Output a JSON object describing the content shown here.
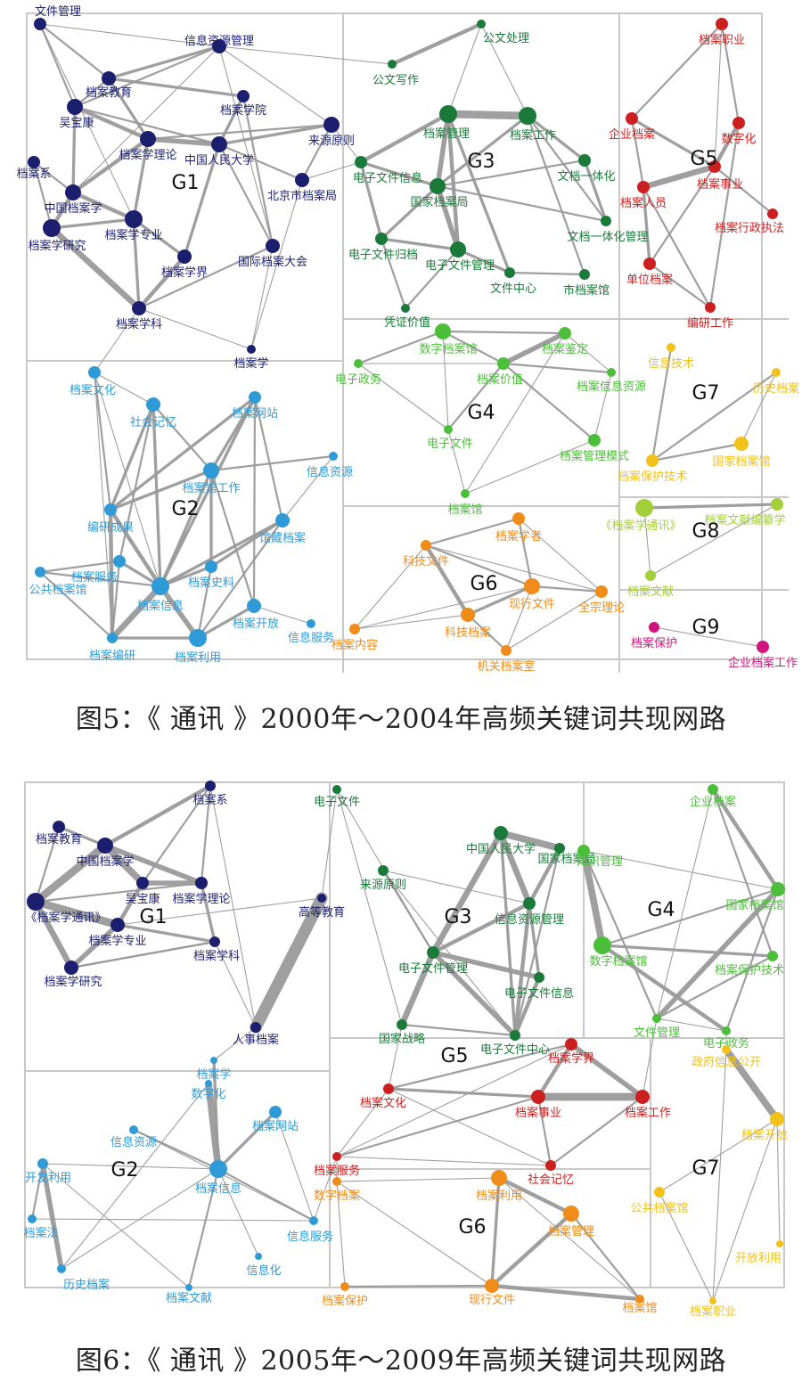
{
  "colors": {
    "G1": "#1c1f6e",
    "G2": "#2f9bd6",
    "G3": "#1a7a3a",
    "G4": "#4cbf3a",
    "G5": "#cc1f1f",
    "G6": "#ef8c1a",
    "G7": "#f2c21a",
    "G8": "#a4cf3a",
    "G9": "#d0157c",
    "edge": "#9a9a9a",
    "border": "#c8c8c8"
  },
  "figures": [
    {
      "caption": "图5：《 通讯 》2000年～2004年高频关键词共现网路",
      "groups": [
        {
          "id": "G1",
          "label": "G1",
          "nodes": [
            {
              "id": "a1",
              "text": "文件管理"
            },
            {
              "id": "a2",
              "text": "信息资源管理"
            },
            {
              "id": "a3",
              "text": "档案教育"
            },
            {
              "id": "a4",
              "text": "档案学院"
            },
            {
              "id": "a5",
              "text": "吴宝康"
            },
            {
              "id": "a6",
              "text": "来源原则"
            },
            {
              "id": "a7",
              "text": "档案学理论"
            },
            {
              "id": "a8",
              "text": "中国人民大学"
            },
            {
              "id": "a9",
              "text": "档案系"
            },
            {
              "id": "a10",
              "text": "北京市档案局"
            },
            {
              "id": "a11",
              "text": "中国档案学"
            },
            {
              "id": "a12",
              "text": "档案学专业"
            },
            {
              "id": "a13",
              "text": "档案学研究"
            },
            {
              "id": "a14",
              "text": "档案学界"
            },
            {
              "id": "a15",
              "text": "国际档案大会"
            },
            {
              "id": "a16",
              "text": "档案学科"
            },
            {
              "id": "a17",
              "text": "档案学"
            }
          ]
        },
        {
          "id": "G3",
          "label": "G3",
          "nodes": [
            {
              "id": "c1",
              "text": "公文处理"
            },
            {
              "id": "c2",
              "text": "公文写作"
            },
            {
              "id": "c3",
              "text": "档案管理"
            },
            {
              "id": "c4",
              "text": "档案工作"
            },
            {
              "id": "c5",
              "text": "电子文件信息"
            },
            {
              "id": "c6",
              "text": "文档一体化"
            },
            {
              "id": "c7",
              "text": "国家档案局"
            },
            {
              "id": "c8",
              "text": "文档一体化管理"
            },
            {
              "id": "c9",
              "text": "电子文件归档"
            },
            {
              "id": "c10",
              "text": "电子文件管理"
            },
            {
              "id": "c11",
              "text": "文件中心"
            },
            {
              "id": "c12",
              "text": "市档案馆"
            },
            {
              "id": "c13",
              "text": "凭证价值"
            }
          ]
        },
        {
          "id": "G5",
          "label": "G5",
          "nodes": [
            {
              "id": "e1",
              "text": "档案职业"
            },
            {
              "id": "e2",
              "text": "企业档案"
            },
            {
              "id": "e3",
              "text": "数字化"
            },
            {
              "id": "e4",
              "text": "档案事业"
            },
            {
              "id": "e5",
              "text": "档案人员"
            },
            {
              "id": "e6",
              "text": "档案行政执法"
            },
            {
              "id": "e7",
              "text": "单位档案"
            },
            {
              "id": "e8",
              "text": "编研工作"
            }
          ]
        },
        {
          "id": "G2",
          "label": "G2",
          "nodes": [
            {
              "id": "b1",
              "text": "档案文化"
            },
            {
              "id": "b2",
              "text": "社会记忆"
            },
            {
              "id": "b3",
              "text": "档案网站"
            },
            {
              "id": "b4",
              "text": "信息资源"
            },
            {
              "id": "b5",
              "text": "档案馆工作"
            },
            {
              "id": "b6",
              "text": "编研成果"
            },
            {
              "id": "b7",
              "text": "馆藏档案"
            },
            {
              "id": "b8",
              "text": "档案服务"
            },
            {
              "id": "b9",
              "text": "档案史料"
            },
            {
              "id": "b10",
              "text": "公共档案馆"
            },
            {
              "id": "b11",
              "text": "档案信息"
            },
            {
              "id": "b12",
              "text": "档案开放"
            },
            {
              "id": "b13",
              "text": "信息服务"
            },
            {
              "id": "b14",
              "text": "档案编研"
            },
            {
              "id": "b15",
              "text": "档案利用"
            }
          ]
        },
        {
          "id": "G4",
          "label": "G4",
          "nodes": [
            {
              "id": "d1",
              "text": "数字档案馆"
            },
            {
              "id": "d2",
              "text": "档案鉴定"
            },
            {
              "id": "d3",
              "text": "电子政务"
            },
            {
              "id": "d4",
              "text": "档案价值"
            },
            {
              "id": "d5",
              "text": "档案信息资源"
            },
            {
              "id": "d6",
              "text": "电子文件"
            },
            {
              "id": "d7",
              "text": "档案管理模式"
            },
            {
              "id": "d8",
              "text": "档案馆"
            }
          ]
        },
        {
          "id": "G7",
          "label": "G7",
          "nodes": [
            {
              "id": "g1",
              "text": "信息技术"
            },
            {
              "id": "g2",
              "text": "历史档案"
            },
            {
              "id": "g3",
              "text": "国家档案馆"
            },
            {
              "id": "g4",
              "text": "档案保护技术"
            }
          ]
        },
        {
          "id": "G6",
          "label": "G6",
          "nodes": [
            {
              "id": "f1",
              "text": "档案学者"
            },
            {
              "id": "f2",
              "text": "科技文件"
            },
            {
              "id": "f3",
              "text": "现行文件"
            },
            {
              "id": "f4",
              "text": "全宗理论"
            },
            {
              "id": "f5",
              "text": "档案内容"
            },
            {
              "id": "f6",
              "text": "科技档案"
            },
            {
              "id": "f7",
              "text": "机关档案室"
            }
          ]
        },
        {
          "id": "G8",
          "label": "G8",
          "nodes": [
            {
              "id": "h1",
              "text": "《档案学通讯》"
            },
            {
              "id": "h2",
              "text": "档案文献编纂学"
            },
            {
              "id": "h3",
              "text": "档案文献"
            }
          ]
        },
        {
          "id": "G9",
          "label": "G9",
          "nodes": [
            {
              "id": "i1",
              "text": "档案保护"
            },
            {
              "id": "i2",
              "text": "企业档案工作"
            }
          ]
        }
      ]
    },
    {
      "caption": "图6：《 通讯 》2005年～2009年高频关键词共现网路",
      "groups": [
        {
          "id": "G1",
          "label": "G1",
          "nodes": [
            {
              "id": "p1",
              "text": "档案系"
            },
            {
              "id": "p2",
              "text": "档案教育"
            },
            {
              "id": "p3",
              "text": "中国档案学"
            },
            {
              "id": "p4",
              "text": "吴宝康"
            },
            {
              "id": "p5",
              "text": "档案学理论"
            },
            {
              "id": "p6",
              "text": "《档案学通讯》"
            },
            {
              "id": "p7",
              "text": "档案学专业"
            },
            {
              "id": "p8",
              "text": "档案学科"
            },
            {
              "id": "p9",
              "text": "档案学研究"
            },
            {
              "id": "p10",
              "text": "高等教育"
            },
            {
              "id": "p11",
              "text": "人事档案"
            }
          ]
        },
        {
          "id": "G3",
          "label": "G3",
          "nodes": [
            {
              "id": "r1",
              "text": "电子文件"
            },
            {
              "id": "r2",
              "text": "中国人民大学"
            },
            {
              "id": "r3",
              "text": "国家档案局"
            },
            {
              "id": "r4",
              "text": "来源原则"
            },
            {
              "id": "r5",
              "text": "信息资源管理"
            },
            {
              "id": "r6",
              "text": "电子文件管理"
            },
            {
              "id": "r7",
              "text": "电子文件信息"
            },
            {
              "id": "r8",
              "text": "国家战略"
            },
            {
              "id": "r9",
              "text": "电子文件中心"
            }
          ]
        },
        {
          "id": "G4",
          "label": "G4",
          "nodes": [
            {
              "id": "s1",
              "text": "企业档案"
            },
            {
              "id": "s2",
              "text": "知识管理"
            },
            {
              "id": "s3",
              "text": "国家档案馆"
            },
            {
              "id": "s4",
              "text": "数字档案馆"
            },
            {
              "id": "s5",
              "text": "档案保护技术"
            },
            {
              "id": "s6",
              "text": "文件管理"
            },
            {
              "id": "s7",
              "text": "电子政务"
            }
          ]
        },
        {
          "id": "G2",
          "label": "G2",
          "nodes": [
            {
              "id": "q1",
              "text": "档案学"
            },
            {
              "id": "q2",
              "text": "数字化"
            },
            {
              "id": "q3",
              "text": "档案网站"
            },
            {
              "id": "q4",
              "text": "信息资源"
            },
            {
              "id": "q5",
              "text": "开发利用"
            },
            {
              "id": "q6",
              "text": "档案信息"
            },
            {
              "id": "q7",
              "text": "档案法"
            },
            {
              "id": "q8",
              "text": "信息服务"
            },
            {
              "id": "q9",
              "text": "信息化"
            },
            {
              "id": "q10",
              "text": "历史档案"
            },
            {
              "id": "q11",
              "text": "档案文献"
            }
          ]
        },
        {
          "id": "G5",
          "label": "G5",
          "nodes": [
            {
              "id": "t1",
              "text": "档案学界"
            },
            {
              "id": "t2",
              "text": "档案文化"
            },
            {
              "id": "t3",
              "text": "档案事业"
            },
            {
              "id": "t4",
              "text": "档案工作"
            },
            {
              "id": "t5",
              "text": "档案服务"
            },
            {
              "id": "t6",
              "text": "社会记忆"
            }
          ]
        },
        {
          "id": "G7",
          "label": "G7",
          "nodes": [
            {
              "id": "v1",
              "text": "政府信息公开"
            },
            {
              "id": "v2",
              "text": "档案开放"
            },
            {
              "id": "v3",
              "text": "公共档案馆"
            },
            {
              "id": "v4",
              "text": "开放利用"
            },
            {
              "id": "v5",
              "text": "档案职业"
            }
          ]
        },
        {
          "id": "G6",
          "label": "G6",
          "nodes": [
            {
              "id": "u1",
              "text": "数字档案"
            },
            {
              "id": "u2",
              "text": "档案利用"
            },
            {
              "id": "u3",
              "text": "档案管理"
            },
            {
              "id": "u4",
              "text": "档案保护"
            },
            {
              "id": "u5",
              "text": "现行文件"
            },
            {
              "id": "u6",
              "text": "档案馆"
            }
          ]
        }
      ]
    }
  ]
}
